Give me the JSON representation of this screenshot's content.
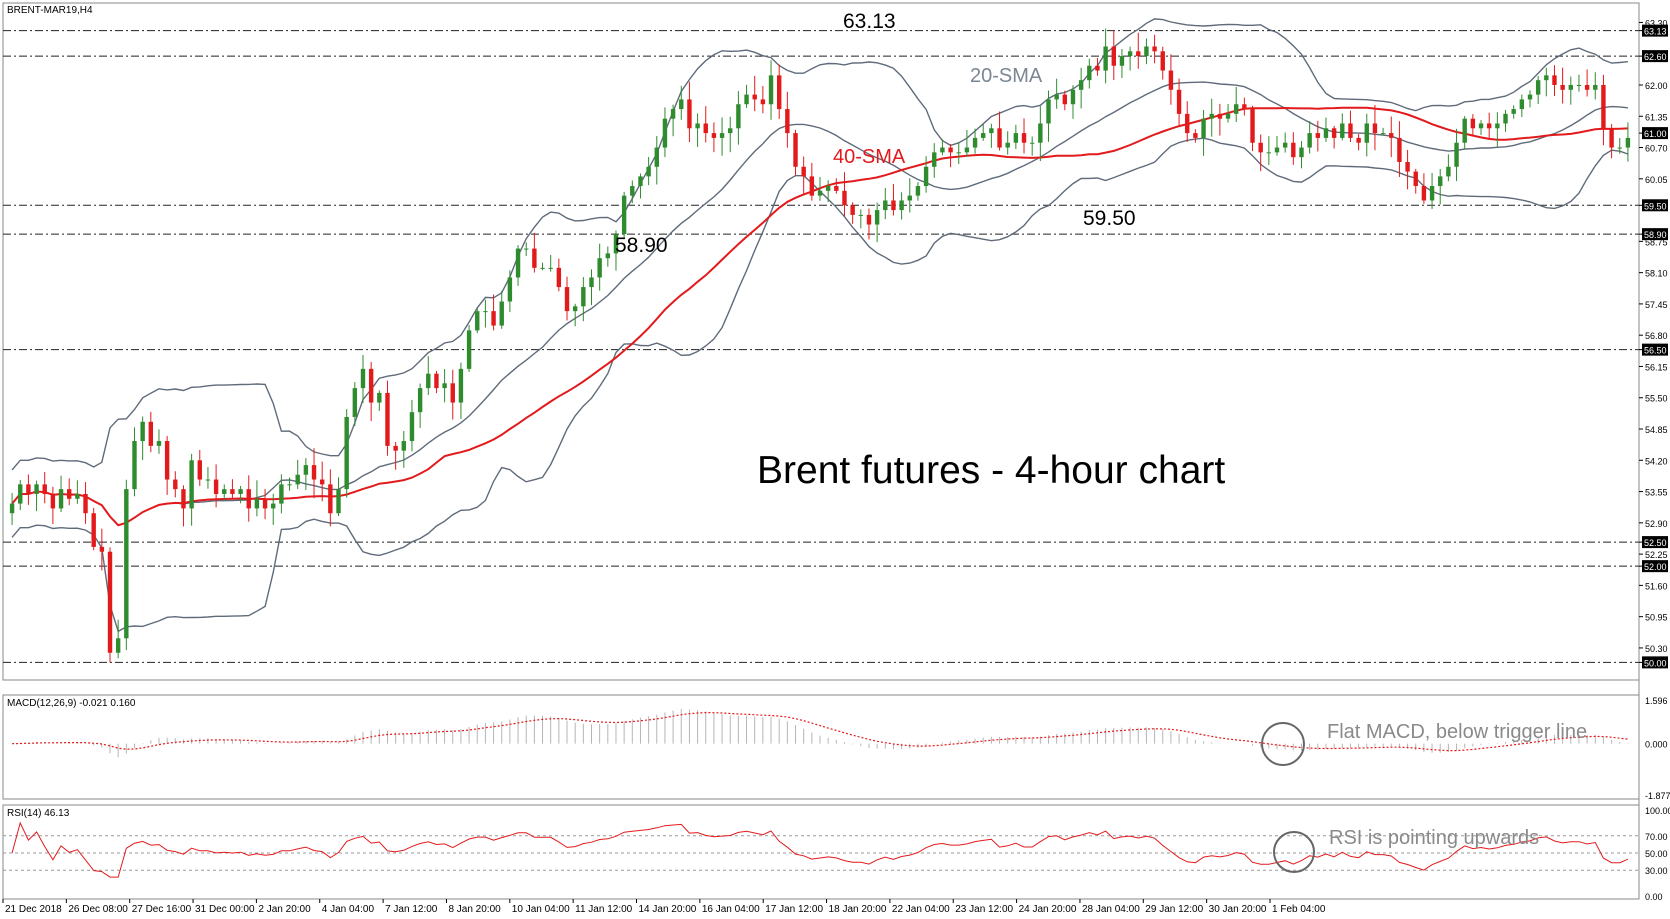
{
  "chart_data": {
    "type": "candlestick",
    "symbol": "BRENT-MAR19,H4",
    "title": "Brent futures - 4-hour chart",
    "price_ylim": [
      49.8,
      63.6
    ],
    "price_ticks": [
      "63.30",
      "63.13",
      "62.60",
      "62.00",
      "61.35",
      "61.00",
      "60.70",
      "60.05",
      "59.50",
      "58.90",
      "58.75",
      "58.10",
      "57.45",
      "56.80",
      "56.50",
      "56.15",
      "55.50",
      "54.85",
      "54.20",
      "53.55",
      "52.90",
      "52.50",
      "52.25",
      "52.00",
      "51.60",
      "50.95",
      "50.30",
      "50.00"
    ],
    "highlighted_levels": [
      "63.13",
      "62.60",
      "61.00",
      "59.50",
      "58.90",
      "56.50",
      "52.50",
      "52.00",
      "50.00"
    ],
    "horizontal_levels": [
      63.13,
      62.6,
      59.5,
      58.9,
      56.5,
      52.5,
      52.0,
      50.0
    ],
    "x_ticks": [
      "21 Dec 2018",
      "26 Dec 08:00",
      "27 Dec 16:00",
      "31 Dec 00:00",
      "2 Jan 20:00",
      "4 Jan 04:00",
      "7 Jan 12:00",
      "8 Jan 20:00",
      "10 Jan 04:00",
      "11 Jan 12:00",
      "14 Jan 20:00",
      "16 Jan 04:00",
      "17 Jan 12:00",
      "18 Jan 20:00",
      "22 Jan 04:00",
      "23 Jan 12:00",
      "24 Jan 20:00",
      "28 Jan 04:00",
      "29 Jan 12:00",
      "30 Jan 20:00",
      "1 Feb 04:00"
    ],
    "closes": [
      53.3,
      53.7,
      53.5,
      53.7,
      53.5,
      53.2,
      53.6,
      53.4,
      53.5,
      53.1,
      52.4,
      52.3,
      50.2,
      50.5,
      53.6,
      54.6,
      55.0,
      54.5,
      54.6,
      53.8,
      53.6,
      53.2,
      54.2,
      53.8,
      53.8,
      53.5,
      53.6,
      53.5,
      53.6,
      53.2,
      53.4,
      53.2,
      53.3,
      53.7,
      53.7,
      53.9,
      54.1,
      53.8,
      53.7,
      53.1,
      53.6,
      55.1,
      55.7,
      56.1,
      55.4,
      55.6,
      54.5,
      54.4,
      54.6,
      55.2,
      55.7,
      56.0,
      55.7,
      55.8,
      55.4,
      56.1,
      56.9,
      57.3,
      57.3,
      57.0,
      57.5,
      58.0,
      58.6,
      58.6,
      58.2,
      58.2,
      58.2,
      57.8,
      57.3,
      57.4,
      57.8,
      58.0,
      58.4,
      58.5,
      58.9,
      59.7,
      59.9,
      60.1,
      60.3,
      60.7,
      61.3,
      61.5,
      61.7,
      61.1,
      61.2,
      61.0,
      60.9,
      61.0,
      61.1,
      61.6,
      61.8,
      61.7,
      61.6,
      62.2,
      61.5,
      61.0,
      60.3,
      60.1,
      59.7,
      59.8,
      59.9,
      59.8,
      59.5,
      59.3,
      59.3,
      59.1,
      59.4,
      59.6,
      59.4,
      59.6,
      59.7,
      59.9,
      60.3,
      60.6,
      60.7,
      60.6,
      60.6,
      60.7,
      60.9,
      61.0,
      61.1,
      60.7,
      60.8,
      61.0,
      60.8,
      60.8,
      61.2,
      61.7,
      61.8,
      61.6,
      61.9,
      62.1,
      62.4,
      62.3,
      62.8,
      62.4,
      62.6,
      62.7,
      62.6,
      62.8,
      62.7,
      62.3,
      61.9,
      61.4,
      61.0,
      60.9,
      61.3,
      61.4,
      61.3,
      61.4,
      61.6,
      61.5,
      60.8,
      60.6,
      60.6,
      60.7,
      60.8,
      60.5,
      60.7,
      61.0,
      60.9,
      61.1,
      60.9,
      61.2,
      60.9,
      60.8,
      61.2,
      61.0,
      61.0,
      60.9,
      60.4,
      60.2,
      59.9,
      59.6,
      59.9,
      60.1,
      60.3,
      60.8,
      61.3,
      61.1,
      61.2,
      61.1,
      61.2,
      61.4,
      61.5,
      61.7,
      61.8,
      62.1,
      62.2,
      62.0,
      61.9,
      62.0,
      62.0,
      61.9,
      62.0,
      61.1,
      60.7,
      60.7,
      60.9
    ],
    "annotations": [
      {
        "text": "63.13",
        "kind": "peak"
      },
      {
        "text": "58.90",
        "kind": "low"
      },
      {
        "text": "59.50",
        "kind": "low"
      },
      {
        "text": "20-SMA",
        "kind": "indicator-label"
      },
      {
        "text": "40-SMA",
        "kind": "indicator-label"
      }
    ],
    "macd": {
      "label": "MACD(12,26,9) -0.021 0.160",
      "ticks": [
        "1.596",
        "0.000",
        "-1.877"
      ],
      "note": "Flat MACD, below trigger line"
    },
    "rsi": {
      "label": "RSI(14) 46.13",
      "ticks": [
        "100.00",
        "70.00",
        "50.00",
        "30.00",
        "0.00"
      ],
      "note": "RSI is pointing upwards"
    }
  },
  "colors": {
    "bull": "#2e8b2e",
    "bear": "#e31a1c",
    "sma40": "#e31a1c",
    "bands": "#5f6b7a",
    "grid_dash": "#222222",
    "tag_bg": "#000000",
    "tag_text": "#ffffff"
  }
}
